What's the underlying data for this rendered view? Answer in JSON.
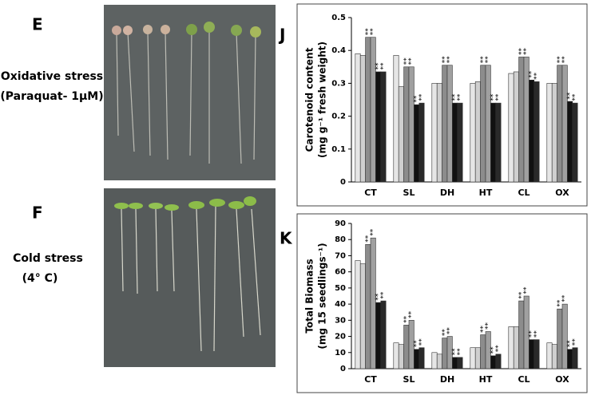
{
  "panels": [
    {
      "letter": "E",
      "caption": [
        "Oxidative stress",
        "(Paraquat- 1μM)"
      ]
    },
    {
      "letter": "F",
      "caption": [
        "Cold stress",
        "(4° C)"
      ]
    }
  ],
  "chart_data": [
    {
      "type": "bar",
      "panel_label": "J",
      "ylabel": [
        "Carotenoid content",
        "(mg g⁻¹ fresh weight)"
      ],
      "categories": [
        "CT",
        "SL",
        "DH",
        "HT",
        "CL",
        "OX"
      ],
      "ylim": [
        0,
        0.5
      ],
      "yticks": [
        0,
        0.1,
        0.2,
        0.3,
        0.4,
        0.5
      ],
      "series": [
        {
          "color": "#e6e6e6",
          "values": [
            0.39,
            0.385,
            0.3,
            0.3,
            0.33,
            0.3
          ]
        },
        {
          "color": "#cfcfcf",
          "values": [
            0.385,
            0.29,
            0.3,
            0.305,
            0.335,
            0.3
          ]
        },
        {
          "color": "#8c8c8c",
          "marker": "**",
          "values": [
            0.44,
            0.35,
            0.355,
            0.355,
            0.38,
            0.355
          ]
        },
        {
          "color": "#a0a0a0",
          "marker": "**",
          "values": [
            0.44,
            0.35,
            0.355,
            0.355,
            0.38,
            0.355
          ]
        },
        {
          "color": "#111111",
          "marker": "**",
          "values": [
            0.335,
            0.235,
            0.24,
            0.24,
            0.31,
            0.245
          ]
        },
        {
          "color": "#2a2a2a",
          "marker": "**",
          "values": [
            0.335,
            0.24,
            0.24,
            0.24,
            0.305,
            0.24
          ]
        }
      ]
    },
    {
      "type": "bar",
      "panel_label": "K",
      "ylabel": [
        "Total Biomass",
        "(mg 15 seedlings⁻¹)"
      ],
      "categories": [
        "CT",
        "SL",
        "DH",
        "HT",
        "CL",
        "OX"
      ],
      "ylim": [
        0,
        90
      ],
      "yticks": [
        0,
        10,
        20,
        30,
        40,
        50,
        60,
        70,
        80,
        90
      ],
      "series": [
        {
          "color": "#e6e6e6",
          "values": [
            67,
            16,
            10,
            13,
            26,
            16
          ]
        },
        {
          "color": "#cfcfcf",
          "values": [
            65,
            15,
            9,
            13,
            26,
            15
          ]
        },
        {
          "color": "#8c8c8c",
          "marker": "**",
          "values": [
            77,
            27,
            19,
            21,
            42,
            37
          ]
        },
        {
          "color": "#a0a0a0",
          "marker": "**",
          "values": [
            81,
            30,
            20,
            23,
            45,
            40
          ]
        },
        {
          "color": "#111111",
          "marker": "**",
          "values": [
            41,
            12,
            7,
            8,
            18,
            12
          ]
        },
        {
          "color": "#2a2a2a",
          "marker": "**",
          "values": [
            42,
            13,
            7,
            9,
            18,
            13
          ]
        }
      ]
    }
  ]
}
